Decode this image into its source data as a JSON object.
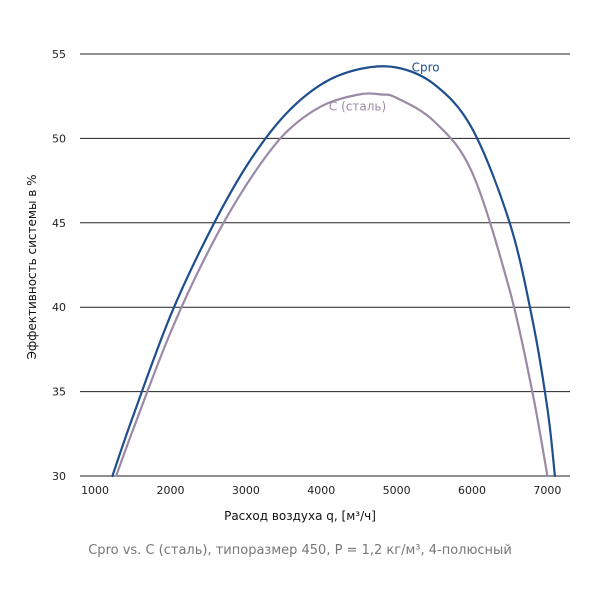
{
  "chart_data": {
    "type": "line",
    "xlabel": "Расход воздуха q, [м³/ч]",
    "ylabel": "Эффективность системы в %",
    "xlim": [
      800,
      7300
    ],
    "ylim": [
      30,
      56
    ],
    "x_ticks": [
      1000,
      2000,
      3000,
      4000,
      5000,
      6000,
      7000
    ],
    "x_tick_labels": [
      "1000",
      "2000",
      "3000",
      "4000",
      "5000",
      "6000",
      "7000"
    ],
    "y_ticks": [
      30,
      35,
      40,
      45,
      50,
      55
    ],
    "y_tick_labels": [
      "30",
      "35",
      "40",
      "45",
      "50",
      "55"
    ],
    "grid": "horizontal",
    "series": [
      {
        "name": "Cpro",
        "color": "#1f4e8c",
        "x": [
          1230,
          1500,
          2000,
          2500,
          3000,
          3500,
          4000,
          4500,
          5000,
          5500,
          6000,
          6500,
          6800,
          7000,
          7100
        ],
        "y": [
          30,
          33.5,
          39.5,
          44.3,
          48.3,
          51.3,
          53.2,
          54.1,
          54.2,
          53.2,
          50.6,
          45.0,
          39.3,
          34.0,
          30
        ]
      },
      {
        "name": "C (сталь)",
        "color": "#9a8aa6",
        "x": [
          1280,
          1500,
          2000,
          2500,
          3000,
          3500,
          4000,
          4500,
          4800,
          5000,
          5500,
          6000,
          6500,
          6800,
          7000
        ],
        "y": [
          30,
          32.7,
          38.5,
          43.3,
          47.2,
          50.2,
          51.9,
          52.6,
          52.6,
          52.4,
          51.0,
          48.0,
          41.0,
          35.0,
          30
        ]
      }
    ],
    "caption": "Cpro vs. C (сталь), типоразмер 450, P = 1,2 кг/м³, 4-полюсный"
  }
}
